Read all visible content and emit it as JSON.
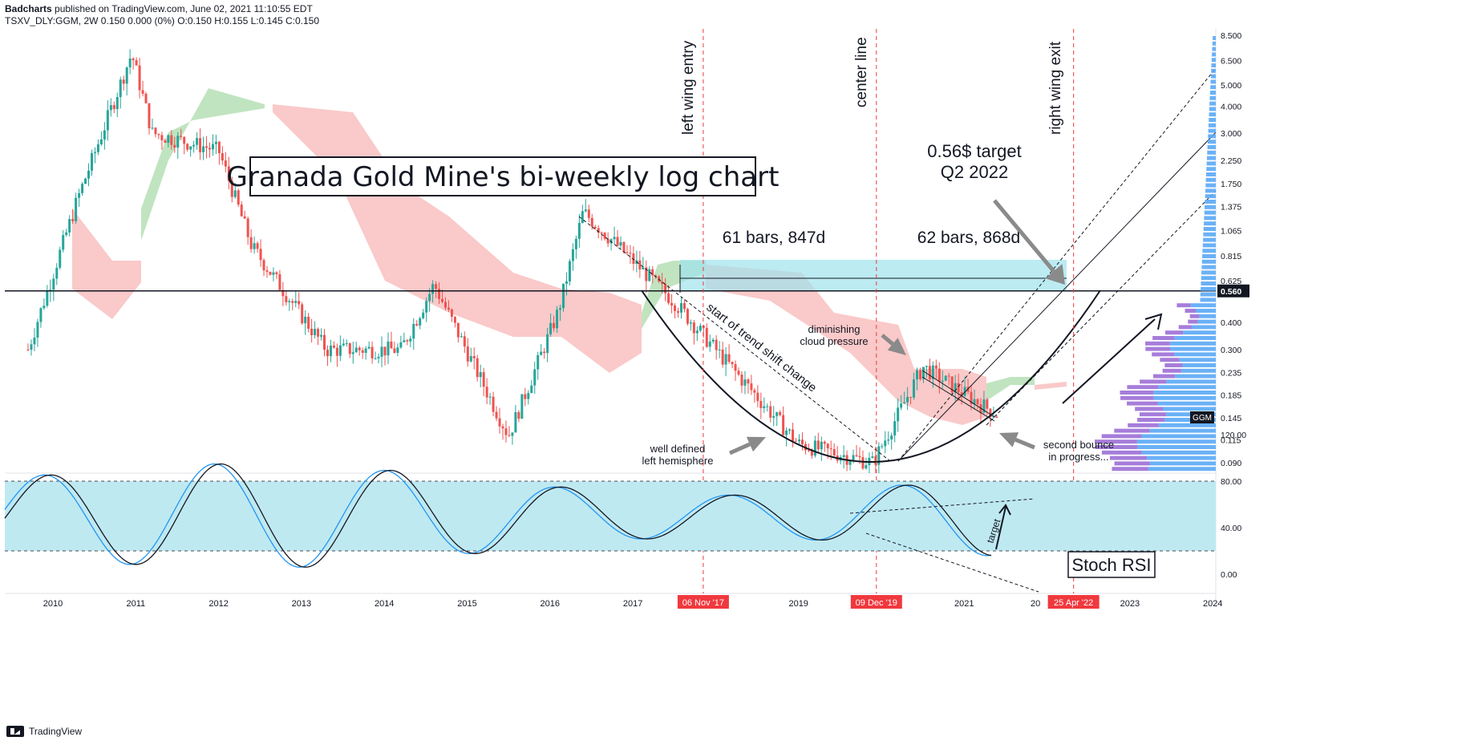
{
  "header": {
    "publisher": "Badcharts",
    "published_line": " published on TradingView.com, June 02, 2021 11:10:55 EDT",
    "symbol_line": "TSXV_DLY:GGM, 2W  0.150  0.000 (0%)  O:0.150  H:0.155  L:0.145  C:0.150"
  },
  "footer": {
    "brand": "TradingView"
  },
  "colors": {
    "up": "#26a69a",
    "down": "#ef5350",
    "cloud_red": "#f9c0c0",
    "cloud_green": "#b5dfb5",
    "stoch_band": "#bfe9f1",
    "stoch_k": "#2196f3",
    "stoch_d": "#131722",
    "vp_blue": "#5aa8f5",
    "vp_purple": "#9c6fd6",
    "dashed_red": "#f0393e",
    "target_box": "#9fe3ec"
  },
  "chart_data": {
    "type": "candlestick",
    "title": "Granada Gold Mine's bi-weekly log chart",
    "symbol": "GGM",
    "current_price_label": "0.560",
    "price_axis_ticks": [
      "8.500",
      "6.500",
      "5.000",
      "4.000",
      "3.000",
      "2.250",
      "1.750",
      "1.375",
      "1.065",
      "0.815",
      "0.625",
      "0.400",
      "0.300",
      "0.235",
      "0.185",
      "0.145",
      "0.115",
      "0.090"
    ],
    "price_axis_values": [
      8.5,
      6.5,
      5.0,
      4.0,
      3.0,
      2.25,
      1.75,
      1.375,
      1.065,
      0.815,
      0.625,
      0.4,
      0.3,
      0.235,
      0.185,
      0.145,
      0.115,
      0.09
    ],
    "time_axis_labels": [
      "2010",
      "2011",
      "2012",
      "2013",
      "2014",
      "2015",
      "2016",
      "2017",
      "2019",
      "2021",
      "2023",
      "2024"
    ],
    "time_axis_years": [
      2010,
      2011,
      2012,
      2013,
      2014,
      2015,
      2016,
      2017,
      2019,
      2021,
      2023,
      2024
    ],
    "highlighted_dates": [
      {
        "label": "06 Nov '17",
        "year": 2017.85
      },
      {
        "label": "09 Dec '19",
        "year": 2019.94
      },
      {
        "label": "25 Apr '22",
        "year": 2022.32
      }
    ],
    "partial_axis_label": "20",
    "horizontal_level": 0.56,
    "target_zone": {
      "low": 0.56,
      "high": 0.78
    },
    "annotations": {
      "left_wing": "left wing entry",
      "center": "center line",
      "right_wing": "right wing exit",
      "target": [
        "0.56$ target",
        "Q2 2022"
      ],
      "bars_left": "61 bars, 847d",
      "bars_right": "62 bars, 868d",
      "trend_shift": "start of trend shift change",
      "diminishing": [
        "diminishing",
        "cloud pressure"
      ],
      "well_defined": [
        "well defined",
        "left hemisphere"
      ],
      "second_bounce": [
        "second bounce",
        "in progress..."
      ],
      "stoch_target": "target"
    },
    "key_prices": [
      {
        "year": 2009.7,
        "price": 0.3
      },
      {
        "year": 2010.3,
        "price": 1.5
      },
      {
        "year": 2010.95,
        "price": 7.0
      },
      {
        "year": 2011.2,
        "price": 3.0
      },
      {
        "year": 2012.0,
        "price": 2.5
      },
      {
        "year": 2012.4,
        "price": 0.9
      },
      {
        "year": 2013.3,
        "price": 0.3
      },
      {
        "year": 2014.2,
        "price": 0.3
      },
      {
        "year": 2014.6,
        "price": 0.6
      },
      {
        "year": 2015.5,
        "price": 0.12
      },
      {
        "year": 2016.1,
        "price": 0.45
      },
      {
        "year": 2016.4,
        "price": 1.3
      },
      {
        "year": 2017.5,
        "price": 0.5
      },
      {
        "year": 2018.0,
        "price": 0.3
      },
      {
        "year": 2019.0,
        "price": 0.11
      },
      {
        "year": 2019.9,
        "price": 0.09
      },
      {
        "year": 2020.5,
        "price": 0.25
      },
      {
        "year": 2021.4,
        "price": 0.15
      }
    ],
    "stoch_rsi": {
      "label": "Stoch RSI",
      "axis_ticks": [
        "120.00",
        "80.00",
        "40.00",
        "0.00"
      ],
      "axis_values": [
        120,
        80,
        40,
        0
      ],
      "band": [
        20,
        80
      ]
    }
  }
}
